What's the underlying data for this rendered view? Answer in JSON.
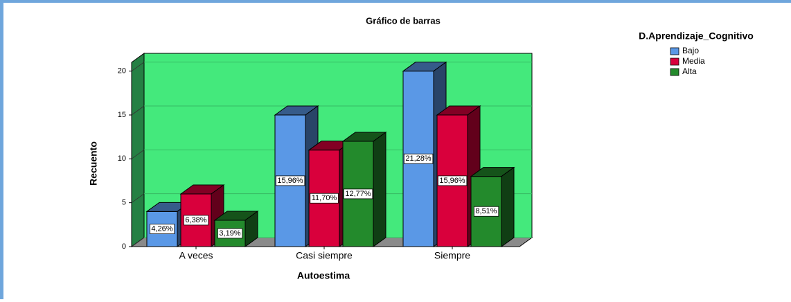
{
  "chart_data": {
    "type": "bar3d",
    "title": "Gráfico de barras",
    "x_label": "Autoestima",
    "y_label": "Recuento",
    "legend_title": "D.Aprendizaje_Cognitivo",
    "legend": "right",
    "categories": [
      "A veces",
      "Casi siempre",
      "Siempre"
    ],
    "series": [
      {
        "name": "Bajo",
        "color": "#5a98e6",
        "values": [
          4,
          15,
          20
        ],
        "value_labels": [
          "4,26%",
          "15,96%",
          "21,28%"
        ]
      },
      {
        "name": "Media",
        "color": "#d9003c",
        "values": [
          6,
          11,
          15
        ],
        "value_labels": [
          "6,38%",
          "11,70%",
          "15,96%"
        ]
      },
      {
        "name": "Alta",
        "color": "#238a2c",
        "values": [
          3,
          12,
          8
        ],
        "value_labels": [
          "3,19%",
          "12,77%",
          "8,51%"
        ]
      }
    ],
    "ylim": [
      0,
      21
    ],
    "yticks": [
      0,
      5,
      10,
      15,
      20
    ],
    "grid": true,
    "wall_color": "#44e97c"
  }
}
